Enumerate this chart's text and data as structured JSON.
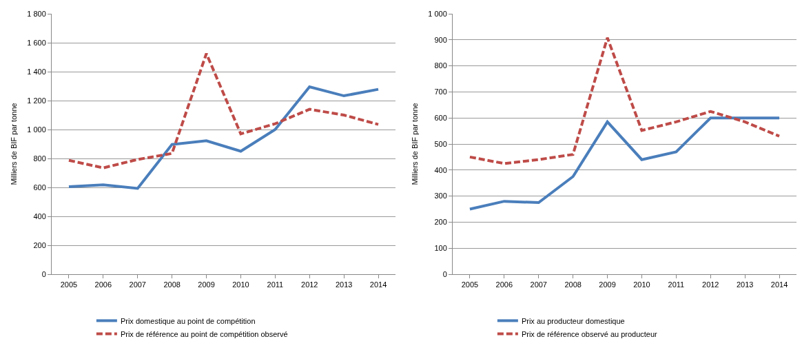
{
  "chart_data": [
    {
      "type": "line",
      "ylabel": "Milliers de BIF par tonne",
      "categories": [
        "2005",
        "2006",
        "2007",
        "2008",
        "2009",
        "2010",
        "2011",
        "2012",
        "2013",
        "2014"
      ],
      "series": [
        {
          "name": "Prix domestique au point de compétition",
          "color": "#4a7ebb",
          "line_style": "solid",
          "values": [
            605,
            618,
            593,
            897,
            922,
            850,
            1000,
            1295,
            1233,
            1278
          ]
        },
        {
          "name": "Prix de référence au point de compétition observé",
          "color": "#be4b48",
          "line_style": "dashed",
          "values": [
            787,
            735,
            793,
            835,
            1525,
            970,
            1040,
            1140,
            1100,
            1035
          ]
        }
      ],
      "ylim": [
        0,
        1800
      ],
      "yticks": [
        0,
        200,
        400,
        600,
        800,
        {
          "value": 1000,
          "label": "1 000"
        },
        {
          "value": 1200,
          "label": "1 200"
        },
        {
          "value": 1400,
          "label": "1 400"
        },
        {
          "value": 1600,
          "label": "1 600"
        },
        {
          "value": 1800,
          "label": "1 800"
        }
      ],
      "grid": "y",
      "legend": "bottom",
      "marker": "none"
    },
    {
      "type": "line",
      "ylabel": "Milliers de BIF par tonne",
      "categories": [
        "2005",
        "2006",
        "2007",
        "2008",
        "2009",
        "2010",
        "2011",
        "2012",
        "2013",
        "2014"
      ],
      "series": [
        {
          "name": "Prix au producteur domestique",
          "color": "#4a7ebb",
          "line_style": "solid",
          "values": [
            250,
            280,
            275,
            375,
            585,
            440,
            470,
            600,
            600,
            600
          ]
        },
        {
          "name": "Prix de référence observé au producteur",
          "color": "#be4b48",
          "line_style": "dashed",
          "values": [
            450,
            425,
            440,
            460,
            908,
            552,
            585,
            625,
            585,
            530
          ]
        }
      ],
      "ylim": [
        0,
        1000
      ],
      "yticks": [
        0,
        100,
        200,
        300,
        400,
        500,
        600,
        700,
        800,
        900,
        {
          "value": 1000,
          "label": "1 000"
        }
      ],
      "grid": "y",
      "legend": "bottom",
      "marker": "none"
    }
  ]
}
